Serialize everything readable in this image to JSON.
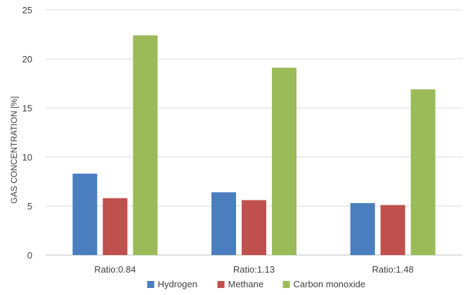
{
  "chart_data": {
    "type": "bar",
    "title": "",
    "xlabel": "",
    "ylabel": "GAS CONCENTRATION [%]",
    "categories": [
      "Ratio:0.84",
      "Ratio:1.13",
      "Ratio:1.48"
    ],
    "series": [
      {
        "name": "Hydrogen",
        "color": "#4a7ebf",
        "values": [
          8.3,
          6.4,
          5.3
        ]
      },
      {
        "name": "Methane",
        "color": "#c0504d",
        "values": [
          5.8,
          5.6,
          5.1
        ]
      },
      {
        "name": "Carbon monoxide",
        "color": "#9bbb59",
        "values": [
          22.4,
          19.1,
          16.9
        ]
      }
    ],
    "ylim": [
      0,
      25
    ],
    "yticks": [
      "0",
      "5",
      "10",
      "15",
      "20",
      "25"
    ],
    "grid": true,
    "legend_position": "bottom"
  }
}
